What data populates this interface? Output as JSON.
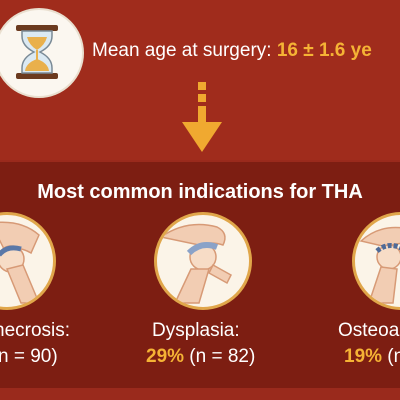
{
  "header": {
    "age_label": "Mean age at surgery: ",
    "age_value": "16 ± 1.6 ye"
  },
  "panel": {
    "title": "Most common indications for THA"
  },
  "indications": [
    {
      "name": "necrosis:",
      "stat_rest": "n = 90)"
    },
    {
      "name": "Dysplasia:",
      "percent": "29%",
      "stat_rest": " (n = 82)"
    },
    {
      "name": "Osteoa",
      "percent": "19%",
      "stat_rest": " (n"
    }
  ],
  "colors": {
    "background": "#9a2a1c",
    "panel": "#7d1e12",
    "accent": "#f5b335",
    "circle": "#fbf4e8"
  },
  "icons": [
    "hourglass-icon",
    "down-arrow-icon",
    "hip-joint-icon"
  ]
}
